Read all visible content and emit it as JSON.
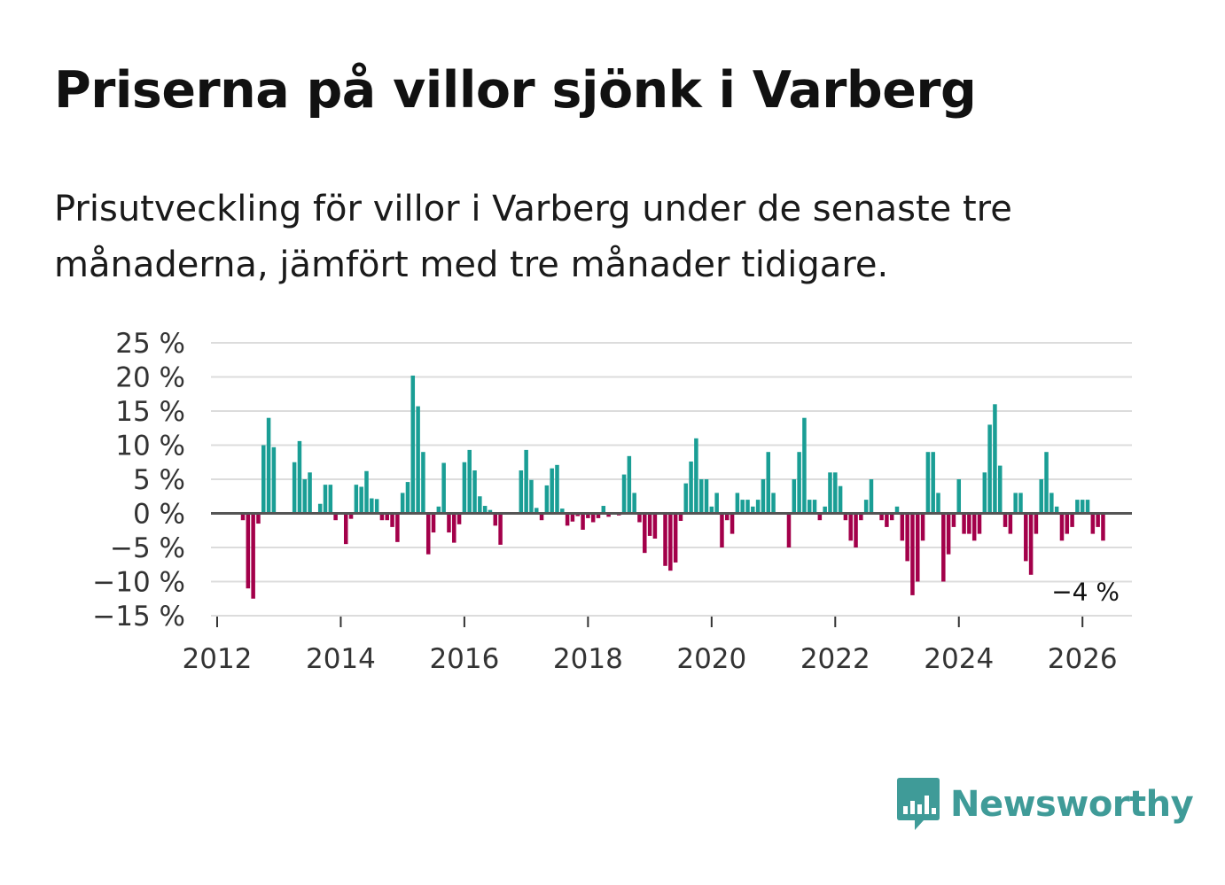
{
  "title": "Priserna på villor sjönk i Varberg",
  "subtitle": "Prisutveckling för villor i Varberg under de senaste tre månaderna, jämfört med tre månader tidigare.",
  "brand": {
    "name": "Newsworthy",
    "icon": "bar-chart-speech-bubble-icon"
  },
  "colors": {
    "positive": "#1a9e95",
    "negative": "#a3004a",
    "zero_line": "#555555",
    "grid": "#dcdcdc",
    "brand": "#3f9b98"
  },
  "chart_data": {
    "type": "bar",
    "title": "Priserna på villor sjönk i Varberg",
    "xlabel": "",
    "ylabel": "",
    "ylim": [
      -15,
      25
    ],
    "xlim": [
      2011.9,
      2026.8
    ],
    "grid": true,
    "y_ticks": [
      25,
      20,
      15,
      10,
      5,
      0,
      -5,
      -10,
      -15
    ],
    "y_tick_labels": [
      "25 %",
      "20 %",
      "15 %",
      "10 %",
      "5 %",
      "0 %",
      "−5 %",
      "−10 %",
      "−15 %"
    ],
    "x_ticks": [
      2012,
      2014,
      2016,
      2018,
      2020,
      2022,
      2024,
      2026
    ],
    "x_tick_labels": [
      "2012",
      "2014",
      "2016",
      "2018",
      "2020",
      "2022",
      "2024",
      "2026"
    ],
    "x_start": 2012.0,
    "x_step": 0.0833333,
    "values": [
      0,
      0,
      0,
      0,
      0,
      -1,
      -11,
      -12.5,
      -1.5,
      10,
      14,
      9.7,
      0,
      0,
      0,
      7.5,
      10.6,
      5,
      6,
      0,
      1.4,
      4.2,
      4.2,
      -1,
      0,
      -4.5,
      -0.8,
      4.2,
      3.9,
      6.2,
      2.2,
      2.1,
      -1,
      -1,
      -2,
      -4.2,
      3,
      4.6,
      20.2,
      15.7,
      9,
      -6,
      -2.8,
      1,
      7.4,
      -2.8,
      -4.3,
      -1.6,
      7.5,
      9.3,
      6.3,
      2.5,
      1.1,
      0.5,
      -1.8,
      -4.6,
      0,
      0,
      0,
      6.3,
      9.3,
      4.9,
      0.8,
      -1,
      4.1,
      6.6,
      7.1,
      0.7,
      -1.8,
      -1.2,
      -0.4,
      -2.4,
      -0.7,
      -1.3,
      -0.7,
      1.1,
      -0.5,
      0,
      -0.3,
      5.7,
      8.4,
      3,
      -1.3,
      -5.8,
      -3.3,
      -3.7,
      0,
      -7.7,
      -8.4,
      -7.2,
      -1.1,
      4.4,
      7.6,
      11,
      5,
      5,
      1,
      3,
      -5,
      -1,
      -3,
      3,
      2,
      2,
      1,
      2,
      5,
      9,
      3,
      0,
      0,
      -5,
      5,
      9,
      14,
      2,
      2,
      -1,
      1,
      6,
      6,
      4,
      -1,
      -4,
      -5,
      -1,
      2,
      5,
      0,
      -1,
      -2,
      -1,
      1,
      -4,
      -7,
      -12,
      -10,
      -4,
      9,
      9,
      3,
      -10,
      -6,
      -2,
      5,
      -3,
      -3,
      -4,
      -3,
      6,
      13,
      16,
      7,
      -2,
      -3,
      3,
      3,
      -7,
      -9,
      -3,
      5,
      9,
      3,
      1,
      -4,
      -3,
      -2,
      2,
      2,
      2,
      -3,
      -2,
      -4
    ],
    "last_value_label": "−4 %"
  }
}
